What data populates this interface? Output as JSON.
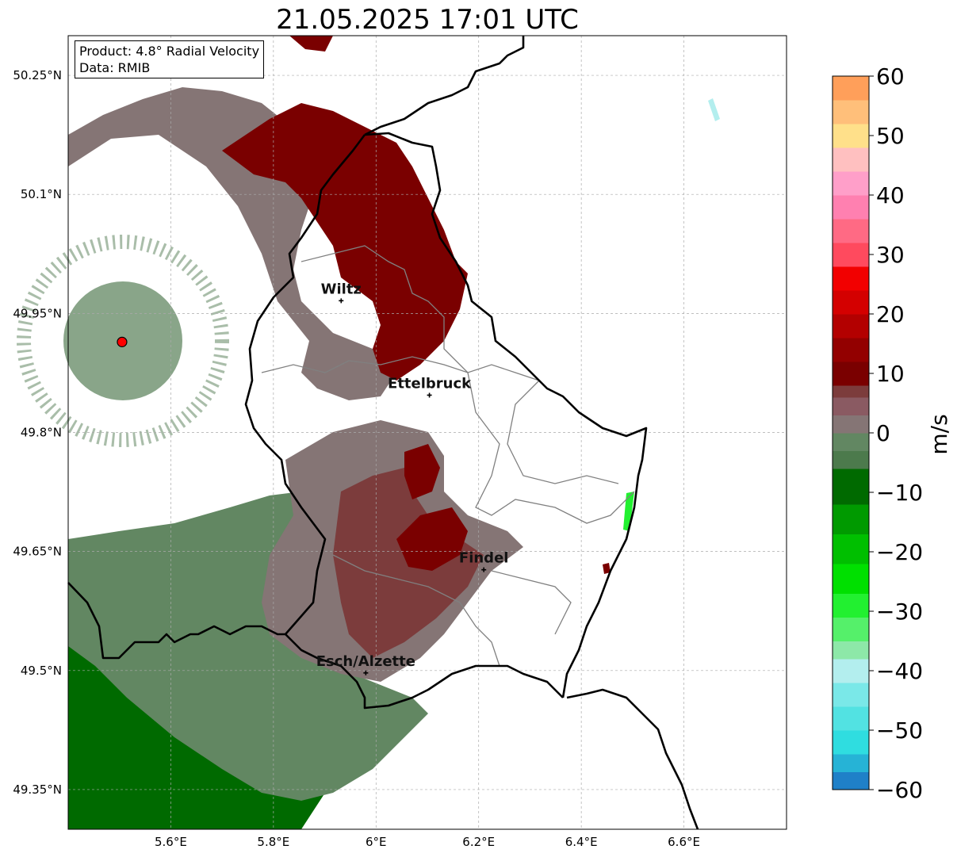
{
  "title": "21.05.2025 17:01 UTC",
  "info": {
    "product_line": "Product: 4.8° Radial Velocity",
    "data_line": "Data: RMIB"
  },
  "map": {
    "lon_range": [
      5.4,
      6.8
    ],
    "lat_range": [
      49.3,
      50.3
    ],
    "lon_ticks": [
      {
        "value": 5.6,
        "label": "5.6°E"
      },
      {
        "value": 5.8,
        "label": "5.8°E"
      },
      {
        "value": 6.0,
        "label": "6°E"
      },
      {
        "value": 6.2,
        "label": "6.2°E"
      },
      {
        "value": 6.4,
        "label": "6.4°E"
      },
      {
        "value": 6.6,
        "label": "6.6°E"
      }
    ],
    "lat_ticks": [
      {
        "value": 50.25,
        "label": "50.25°N"
      },
      {
        "value": 50.1,
        "label": "50.1°N"
      },
      {
        "value": 49.95,
        "label": "49.95°N"
      },
      {
        "value": 49.8,
        "label": "49.8°N"
      },
      {
        "value": 49.65,
        "label": "49.65°N"
      },
      {
        "value": 49.5,
        "label": "49.5°N"
      },
      {
        "value": 49.35,
        "label": "49.35°N"
      }
    ],
    "grid": true,
    "radar_site": {
      "lon": 5.505,
      "lat": 49.914
    },
    "cities": [
      {
        "name": "Wiltz",
        "lon": 5.932,
        "lat": 49.966
      },
      {
        "name": "Ettelbruck",
        "lon": 6.104,
        "lat": 49.847
      },
      {
        "name": "Findel",
        "lon": 6.21,
        "lat": 49.627
      },
      {
        "name": "Esch/Alzette",
        "lon": 5.98,
        "lat": 49.497
      }
    ]
  },
  "colorbar": {
    "label": "m/s",
    "min": -60,
    "max": 60,
    "ticks": [
      {
        "value": 60,
        "label": "60"
      },
      {
        "value": 50,
        "label": "50"
      },
      {
        "value": 40,
        "label": "40"
      },
      {
        "value": 30,
        "label": "30"
      },
      {
        "value": 20,
        "label": "20"
      },
      {
        "value": 10,
        "label": "10"
      },
      {
        "value": 0,
        "label": "0"
      },
      {
        "value": -10,
        "label": "−10"
      },
      {
        "value": -20,
        "label": "−20"
      },
      {
        "value": -30,
        "label": "−30"
      },
      {
        "value": -40,
        "label": "−40"
      },
      {
        "value": -50,
        "label": "−50"
      },
      {
        "value": -60,
        "label": "−60"
      }
    ],
    "stops": [
      {
        "from": -60,
        "to": -57,
        "color": "#1f80c8"
      },
      {
        "from": -57,
        "to": -54,
        "color": "#26b3d6"
      },
      {
        "from": -54,
        "to": -50,
        "color": "#2fdde0"
      },
      {
        "from": -50,
        "to": -46,
        "color": "#52e2e2"
      },
      {
        "from": -46,
        "to": -42,
        "color": "#7ae8e8"
      },
      {
        "from": -42,
        "to": -38,
        "color": "#b3eeee"
      },
      {
        "from": -38,
        "to": -35,
        "color": "#8de8a8"
      },
      {
        "from": -35,
        "to": -31,
        "color": "#55f06a"
      },
      {
        "from": -31,
        "to": -27,
        "color": "#22f030"
      },
      {
        "from": -27,
        "to": -22,
        "color": "#00e000"
      },
      {
        "from": -22,
        "to": -17,
        "color": "#00bf00"
      },
      {
        "from": -17,
        "to": -12,
        "color": "#009a00"
      },
      {
        "from": -12,
        "to": -6,
        "color": "#006a00"
      },
      {
        "from": -6,
        "to": -3,
        "color": "#4c7a4c"
      },
      {
        "from": -3,
        "to": 0,
        "color": "#628762"
      },
      {
        "from": 0,
        "to": 3,
        "color": "#857575"
      },
      {
        "from": 3,
        "to": 6,
        "color": "#8a5a62"
      },
      {
        "from": 6,
        "to": 8,
        "color": "#7c3c3c"
      },
      {
        "from": 8,
        "to": 12,
        "color": "#7a0000"
      },
      {
        "from": 12,
        "to": 16,
        "color": "#930000"
      },
      {
        "from": 16,
        "to": 20,
        "color": "#b30000"
      },
      {
        "from": 20,
        "to": 24,
        "color": "#d40000"
      },
      {
        "from": 24,
        "to": 28,
        "color": "#f20000"
      },
      {
        "from": 28,
        "to": 32,
        "color": "#ff4a5e"
      },
      {
        "from": 32,
        "to": 36,
        "color": "#ff6a84"
      },
      {
        "from": 36,
        "to": 40,
        "color": "#ff80b0"
      },
      {
        "from": 40,
        "to": 44,
        "color": "#ff9fc9"
      },
      {
        "from": 44,
        "to": 48,
        "color": "#ffc0c0"
      },
      {
        "from": 48,
        "to": 52,
        "color": "#ffe08a"
      },
      {
        "from": 52,
        "to": 56,
        "color": "#ffbf7a"
      },
      {
        "from": 56,
        "to": 60,
        "color": "#ff9f5a"
      }
    ]
  }
}
